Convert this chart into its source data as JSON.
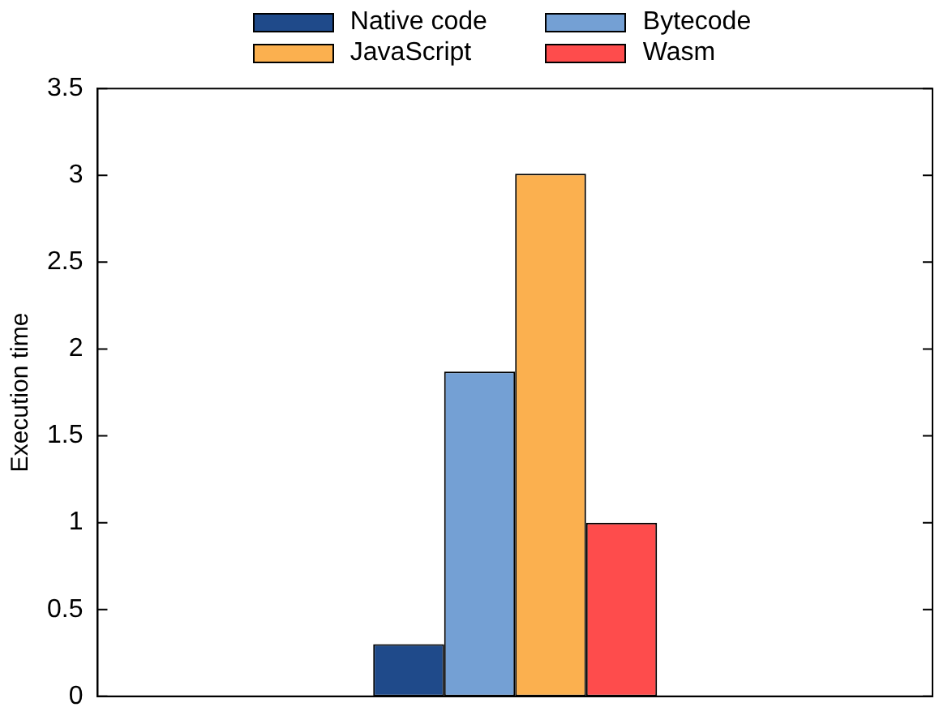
{
  "chart_data": {
    "type": "bar",
    "ylabel": "Execution time",
    "categories": [
      null
    ],
    "series": [
      {
        "name": "Native code",
        "color": "#1f4a8a",
        "values": [
          0.3
        ]
      },
      {
        "name": "Bytecode",
        "color": "#74a0d4",
        "values": [
          1.87
        ]
      },
      {
        "name": "JavaScript",
        "color": "#fbb04f",
        "values": [
          3.01
        ]
      },
      {
        "name": "Wasm",
        "color": "#fe4c4c",
        "values": [
          1.0
        ]
      }
    ],
    "ylim": [
      0,
      3.5
    ],
    "yticks": [
      0,
      0.5,
      1,
      1.5,
      2,
      2.5,
      3,
      3.5
    ],
    "grid": false,
    "legend": "top"
  }
}
